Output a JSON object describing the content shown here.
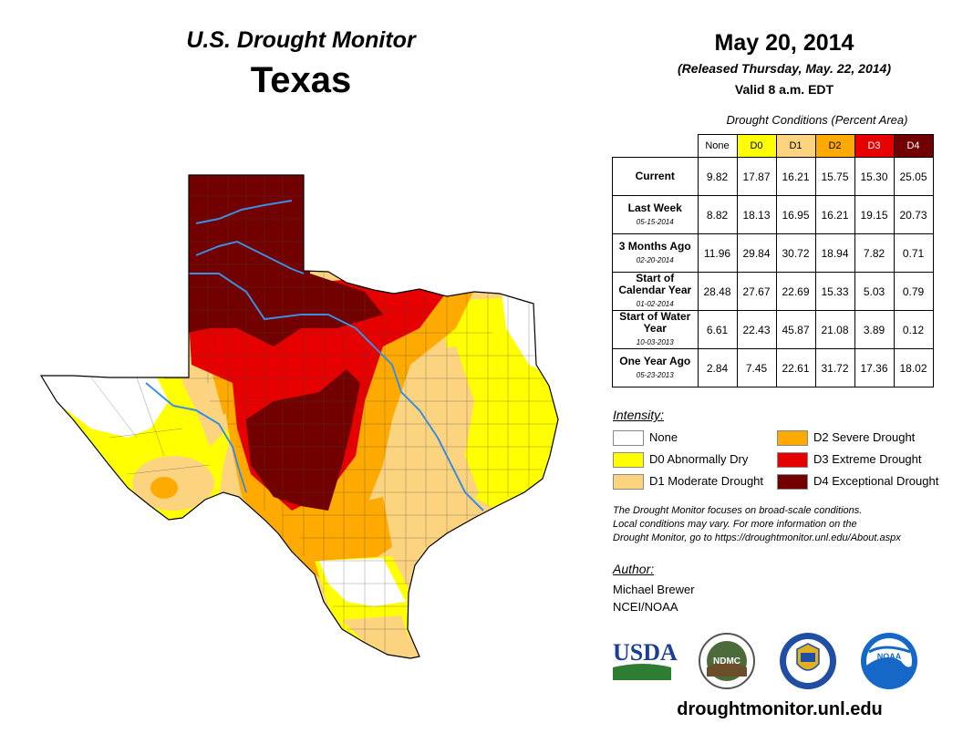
{
  "header": {
    "subtitle": "U.S. Drought Monitor",
    "state": "Texas",
    "date": "May 20, 2014",
    "released": "(Released Thursday, May. 22, 2014)",
    "valid": "Valid 8 a.m. EDT"
  },
  "table": {
    "title": "Drought Conditions (Percent Area)",
    "columns": [
      "None",
      "D0",
      "D1",
      "D2",
      "D3",
      "D4"
    ],
    "rows": [
      {
        "label": "Current",
        "date": "",
        "values": [
          "9.82",
          "17.87",
          "16.21",
          "15.75",
          "15.30",
          "25.05"
        ]
      },
      {
        "label": "Last Week",
        "date": "05-15-2014",
        "values": [
          "8.82",
          "18.13",
          "16.95",
          "16.21",
          "19.15",
          "20.73"
        ]
      },
      {
        "label": "3 Months Ago",
        "date": "02-20-2014",
        "values": [
          "11.96",
          "29.84",
          "30.72",
          "18.94",
          "7.82",
          "0.71"
        ]
      },
      {
        "label": "Start of Calendar Year",
        "date": "01-02-2014",
        "values": [
          "28.48",
          "27.67",
          "22.69",
          "15.33",
          "5.03",
          "0.79"
        ]
      },
      {
        "label": "Start of Water Year",
        "date": "10-03-2013",
        "values": [
          "6.61",
          "22.43",
          "45.87",
          "21.08",
          "3.89",
          "0.12"
        ]
      },
      {
        "label": "One Year Ago",
        "date": "05-23-2013",
        "values": [
          "2.84",
          "7.45",
          "22.61",
          "31.72",
          "17.36",
          "18.02"
        ]
      }
    ]
  },
  "legend": {
    "title": "Intensity:",
    "items": [
      {
        "label": "None",
        "color": "#ffffff"
      },
      {
        "label": "D0 Abnormally Dry",
        "color": "#ffff00"
      },
      {
        "label": "D1 Moderate Drought",
        "color": "#fcd37f"
      },
      {
        "label": "D2 Severe Drought",
        "color": "#ffaa00"
      },
      {
        "label": "D3 Extreme Drought",
        "color": "#e60000"
      },
      {
        "label": "D4 Exceptional Drought",
        "color": "#730000"
      }
    ]
  },
  "note": {
    "line1": "The Drought Monitor focuses on broad-scale conditions.",
    "line2": "Local conditions may vary. For more information on the",
    "line3": "Drought Monitor, go to https://droughtmonitor.unl.edu/About.aspx"
  },
  "author": {
    "title": "Author:",
    "name": "Michael Brewer",
    "org": "NCEI/NOAA"
  },
  "logos": {
    "usda": "USDA",
    "ndmc": "NDMC",
    "noaa": "NOAA"
  },
  "footer": {
    "url": "droughtmonitor.unl.edu"
  },
  "colors": {
    "none": "#ffffff",
    "d0": "#ffff00",
    "d1": "#fcd37f",
    "d2": "#ffaa00",
    "d3": "#e60000",
    "d4": "#730000",
    "river": "#3a8fe0"
  }
}
